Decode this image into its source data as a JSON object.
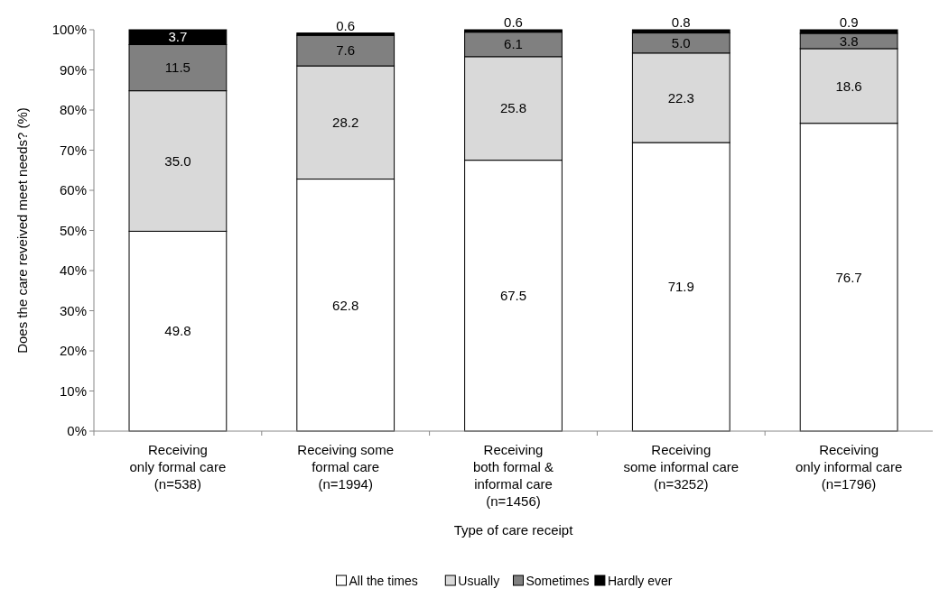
{
  "chart_data": {
    "type": "bar",
    "stacked": true,
    "xlabel": "Type of care receipt",
    "ylabel": "Does the care reveived meet needs? (%)",
    "categories": [
      "Receiving\nonly formal care\n(n=538)",
      "Receiving some\nformal care\n(n=1994)",
      "Receiving\nboth formal &\ninformal care\n(n=1456)",
      "Receiving\nsome informal care\n(n=3252)",
      "Receiving\nonly informal care\n(n=1796)"
    ],
    "series": [
      {
        "name": "All the times",
        "color": "#ffffff",
        "values": [
          49.8,
          62.8,
          67.5,
          71.9,
          76.7
        ],
        "value_labels": [
          "49.8",
          "62.8",
          "67.5",
          "71.9",
          "76.7"
        ]
      },
      {
        "name": "Usually",
        "color": "#d9d9d9",
        "values": [
          35.0,
          28.2,
          25.8,
          22.3,
          18.6
        ],
        "value_labels": [
          "35.0",
          "28.2",
          "25.8",
          "22.3",
          "18.6"
        ]
      },
      {
        "name": "Sometimes",
        "color": "#808080",
        "values": [
          11.5,
          7.6,
          6.1,
          5.0,
          3.8
        ],
        "value_labels": [
          "11.5",
          "7.6",
          "6.1",
          "5.0",
          "3.8"
        ]
      },
      {
        "name": "Hardly ever",
        "color": "#000000",
        "values": [
          3.7,
          0.6,
          0.6,
          0.8,
          0.9
        ],
        "value_labels": [
          "3.7",
          "0.6",
          "0.6",
          "0.8",
          "0.9"
        ]
      }
    ],
    "ylim": [
      0,
      100
    ],
    "yticks": [
      {
        "value": 0,
        "label": "0%"
      },
      {
        "value": 10,
        "label": "10%"
      },
      {
        "value": 20,
        "label": "20%"
      },
      {
        "value": 30,
        "label": "30%"
      },
      {
        "value": 40,
        "label": "40%"
      },
      {
        "value": 50,
        "label": "50%"
      },
      {
        "value": 60,
        "label": "60%"
      },
      {
        "value": 70,
        "label": "70%"
      },
      {
        "value": 80,
        "label": "80%"
      },
      {
        "value": 90,
        "label": "90%"
      },
      {
        "value": 100,
        "label": "100%"
      }
    ],
    "legend": "bottom"
  }
}
